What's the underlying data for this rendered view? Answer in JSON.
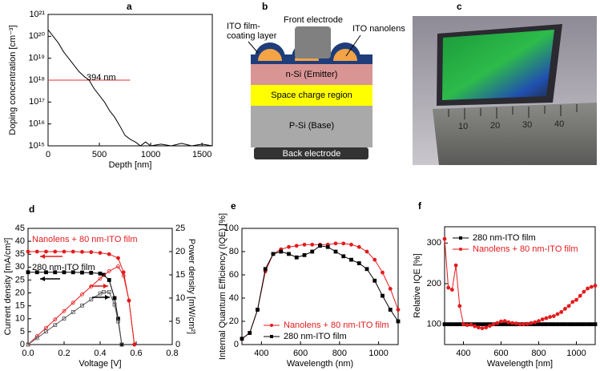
{
  "chart_data": [
    {
      "type": "line",
      "panel": "a",
      "xlabel": "Depth [nm]",
      "ylabel": "Doping concentration [cm⁻³]",
      "log_y": true,
      "x": [
        0,
        50,
        100,
        150,
        200,
        250,
        300,
        350,
        400,
        450,
        500,
        550,
        600,
        650,
        700,
        750,
        800,
        850,
        900,
        950,
        1000,
        1100,
        1200,
        1300,
        1400,
        1500,
        1600
      ],
      "series": [
        {
          "color": "#000000",
          "values": [
            2e+20,
            1e+20,
            5e+19,
            2e+19,
            1e+19,
            5e+18,
            2.5e+18,
            1.5e+18,
            1e+18,
            4e+17,
            2e+17,
            1e+17,
            4e+16,
            2e+16,
            8000000000000000.0,
            3000000000000000.0,
            2000000000000000.0,
            1500000000000000.0,
            1000000000000000.0,
            1500000000000000.0,
            1000000000000000.0,
            1200000000000000.0,
            1000000000000000.0,
            1300000000000000.0,
            1000000000000000.0,
            1200000000000000.0,
            1000000000000000.0
          ]
        }
      ],
      "xlim": [
        0,
        1600
      ],
      "xticks": [
        0,
        500,
        1000,
        1500
      ],
      "ylim": [
        1000000000000000.0,
        1e+21
      ],
      "yticks": [
        {
          "value": 1000000000000000.0,
          "label": "10¹⁵"
        },
        {
          "value": 1e+16,
          "label": "10¹⁶"
        },
        {
          "value": 1e+17,
          "label": "10¹⁷"
        },
        {
          "value": 1e+18,
          "label": "10¹⁸"
        },
        {
          "value": 1e+19,
          "label": "10¹⁹"
        },
        {
          "value": 1e+20,
          "label": "10²⁰"
        },
        {
          "value": 1e+21,
          "label": "10²¹"
        }
      ],
      "ref_line": {
        "y": 1e+18,
        "x": [
          0,
          800
        ],
        "color": "#e03030"
      },
      "annotations": [
        {
          "text": "394 nm",
          "color": "#000000"
        }
      ]
    },
    {
      "type": "line",
      "panel": "d",
      "xlabel": "Voltage [V]",
      "ylabel": "Current density [mA/cm²]",
      "y2label": "Power density [mW/cm²]",
      "series": [
        {
          "color": "#e41a1c",
          "marker": "circle",
          "filled": true,
          "x": [
            0,
            0.05,
            0.1,
            0.15,
            0.2,
            0.25,
            0.3,
            0.35,
            0.4,
            0.45,
            0.5,
            0.53,
            0.56,
            0.59
          ],
          "values": [
            36,
            36,
            36,
            36,
            36,
            36,
            35.9,
            35.8,
            35.5,
            35,
            33.5,
            28,
            17,
            0
          ]
        },
        {
          "color": "#000000",
          "marker": "square",
          "filled": true,
          "x": [
            0,
            0.05,
            0.1,
            0.15,
            0.2,
            0.25,
            0.3,
            0.35,
            0.4,
            0.42,
            0.45,
            0.48,
            0.5,
            0.52
          ],
          "values": [
            28,
            28,
            28,
            28,
            28,
            28,
            27.9,
            27.8,
            27.5,
            27,
            25,
            18,
            10,
            0
          ]
        },
        {
          "color": "#e41a1c",
          "marker": "circle",
          "filled": false,
          "axis": "y2",
          "x": [
            0,
            0.05,
            0.1,
            0.15,
            0.2,
            0.25,
            0.3,
            0.35,
            0.4,
            0.45,
            0.5,
            0.53,
            0.56,
            0.59
          ],
          "values": [
            0,
            1.8,
            3.6,
            5.4,
            7.2,
            9,
            10.8,
            12.5,
            14.2,
            15.8,
            16.8,
            14.8,
            9.5,
            0
          ]
        },
        {
          "color": "#555555",
          "marker": "square",
          "filled": false,
          "axis": "y2",
          "x": [
            0,
            0.05,
            0.1,
            0.15,
            0.2,
            0.25,
            0.3,
            0.35,
            0.4,
            0.42,
            0.45,
            0.48,
            0.5,
            0.52
          ],
          "values": [
            0,
            1.4,
            2.8,
            4.2,
            5.6,
            7,
            8.4,
            9.7,
            11,
            11.3,
            11.3,
            8.6,
            5,
            0
          ]
        }
      ],
      "xlim": [
        0,
        0.8
      ],
      "xticks": [
        {
          "value": 0,
          "label": "0.0"
        },
        0.2,
        0.4,
        0.6,
        0.8
      ],
      "ylim": [
        0,
        45
      ],
      "yticks": [
        0,
        5,
        10,
        15,
        20,
        25,
        30,
        35,
        40,
        45
      ],
      "y2lim": [
        0,
        25
      ],
      "y2ticks": [
        0,
        5,
        10,
        15,
        20,
        25
      ],
      "annotations": [
        {
          "text": "Nanolens + 80 nm-ITO film",
          "color": "#e41a1c"
        },
        {
          "text": "280 nm-ITO film",
          "color": "#000000"
        }
      ]
    },
    {
      "type": "line",
      "panel": "e",
      "xlabel": "Wavelength (nm)",
      "ylabel": "Internal Quantum Efficiency (IQE) [%]",
      "legend": "lower-right",
      "x": [
        300,
        340,
        380,
        420,
        460,
        500,
        540,
        580,
        620,
        660,
        700,
        740,
        780,
        820,
        860,
        900,
        940,
        980,
        1020,
        1060,
        1100
      ],
      "series": [
        {
          "name": "Nanolens + 80 nm-ITO film",
          "color": "#e41a1c",
          "marker": "circle",
          "filled": true,
          "values": [
            5,
            10,
            30,
            63,
            78,
            82,
            84,
            85,
            86,
            86,
            86,
            86,
            87,
            87,
            86,
            84,
            80,
            73,
            62,
            48,
            30
          ]
        },
        {
          "name": "280 nm-ITO film",
          "color": "#000000",
          "marker": "square",
          "filled": true,
          "values": [
            5,
            10,
            30,
            65,
            78,
            80,
            78,
            75,
            77,
            80,
            85,
            84,
            80,
            76,
            73,
            70,
            65,
            55,
            42,
            30,
            20
          ]
        }
      ],
      "xlim": [
        300,
        1100
      ],
      "xticks": [
        400,
        600,
        800,
        1000
      ],
      "ylim": [
        0,
        100
      ],
      "yticks": [
        0,
        20,
        40,
        60,
        80,
        100
      ]
    },
    {
      "type": "line",
      "panel": "f",
      "xlabel": "Wavelength [nm]",
      "ylabel": "Relative IQE [%]",
      "legend": "upper-left",
      "x": [
        300,
        320,
        340,
        360,
        380,
        400,
        420,
        440,
        460,
        480,
        500,
        520,
        540,
        560,
        580,
        600,
        620,
        640,
        660,
        680,
        700,
        720,
        740,
        760,
        780,
        800,
        820,
        840,
        860,
        880,
        900,
        920,
        940,
        960,
        980,
        1000,
        1020,
        1040,
        1060,
        1080,
        1100
      ],
      "series": [
        {
          "name": "280 nm-ITO film",
          "color": "#000000",
          "marker": "square",
          "filled": true,
          "values": [
            100,
            100,
            100,
            100,
            100,
            100,
            100,
            100,
            100,
            100,
            100,
            100,
            100,
            100,
            100,
            100,
            100,
            100,
            100,
            100,
            100,
            100,
            100,
            100,
            100,
            100,
            100,
            100,
            100,
            100,
            100,
            100,
            100,
            100,
            100,
            100,
            100,
            100,
            100,
            100,
            100
          ]
        },
        {
          "name": "Nanolens + 80 nm-ITO film",
          "color": "#e41a1c",
          "marker": "circle",
          "filled": true,
          "values": [
            310,
            190,
            185,
            245,
            145,
            100,
            98,
            99,
            95,
            92,
            90,
            92,
            96,
            100,
            103,
            107,
            108,
            105,
            103,
            102,
            100,
            100,
            101,
            103,
            105,
            108,
            112,
            115,
            118,
            120,
            125,
            130,
            138,
            145,
            155,
            160,
            170,
            180,
            188,
            192,
            195
          ]
        }
      ],
      "xlim": [
        300,
        1100
      ],
      "xticks": [
        400,
        600,
        800,
        1000
      ],
      "ylim": [
        50,
        340
      ],
      "yticks": [
        100,
        200,
        300
      ]
    }
  ],
  "diagram": {
    "panel": "b",
    "front_electrode": "Front electrode",
    "ito_film_coating_layer": [
      "ITO film-",
      "coating layer"
    ],
    "ito_nanolens": "ITO nanolens",
    "emitter": "n-Si (Emitter)",
    "space_charge_region": "Space charge region",
    "base": "P-Si (Base)",
    "back_electrode": "Back electrode"
  },
  "photo": {
    "panel": "c",
    "ruler_labels": [
      "10",
      "20",
      "30",
      "40"
    ]
  }
}
